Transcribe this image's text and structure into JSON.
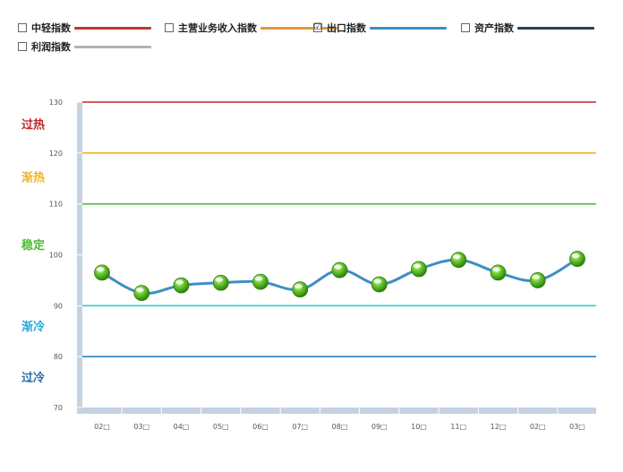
{
  "legend": [
    {
      "label": "中轻指数",
      "color": "#c0392b",
      "checked": false
    },
    {
      "label": "主营业务收入指数",
      "color": "#e8963c",
      "checked": false
    },
    {
      "label": "出口指数",
      "color": "#3b8fc4",
      "checked": true
    },
    {
      "label": "资产指数",
      "color": "#2c3e5a",
      "checked": false
    },
    {
      "label": "利润指数",
      "color": "#b3b3b3",
      "checked": false
    }
  ],
  "check_mark": "☑",
  "chart_data": {
    "type": "line",
    "categories": [
      "02",
      "03",
      "04",
      "05",
      "06",
      "07",
      "08",
      "09",
      "10",
      "11",
      "12",
      "02",
      "03"
    ],
    "category_suffix": "□",
    "series": [
      {
        "name": "出口指数",
        "color": "#3b8fc4",
        "values": [
          96.5,
          92.5,
          94.0,
          94.5,
          94.7,
          93.2,
          97.0,
          94.2,
          97.2,
          99.0,
          96.5,
          95.0,
          99.2
        ]
      }
    ],
    "ylim": [
      70,
      130
    ],
    "yticks": [
      70,
      80,
      90,
      100,
      110,
      120,
      130
    ],
    "bands": [
      {
        "label": "过热",
        "color": "#c0282d"
      },
      {
        "label": "渐热",
        "color": "#f0b429"
      },
      {
        "label": "稳定",
        "color": "#4dbb3a"
      },
      {
        "label": "渐冷",
        "color": "#2aa7d5"
      },
      {
        "label": "过冷",
        "color": "#2a6fa8"
      }
    ],
    "reference_lines": [
      {
        "value": 130,
        "color": "#c0282d"
      },
      {
        "value": 120,
        "color": "#f0b429"
      },
      {
        "value": 110,
        "color": "#4dbb3a"
      },
      {
        "value": 90,
        "color": "#2ad0c8"
      },
      {
        "value": 80,
        "color": "#2a80c0"
      }
    ]
  }
}
